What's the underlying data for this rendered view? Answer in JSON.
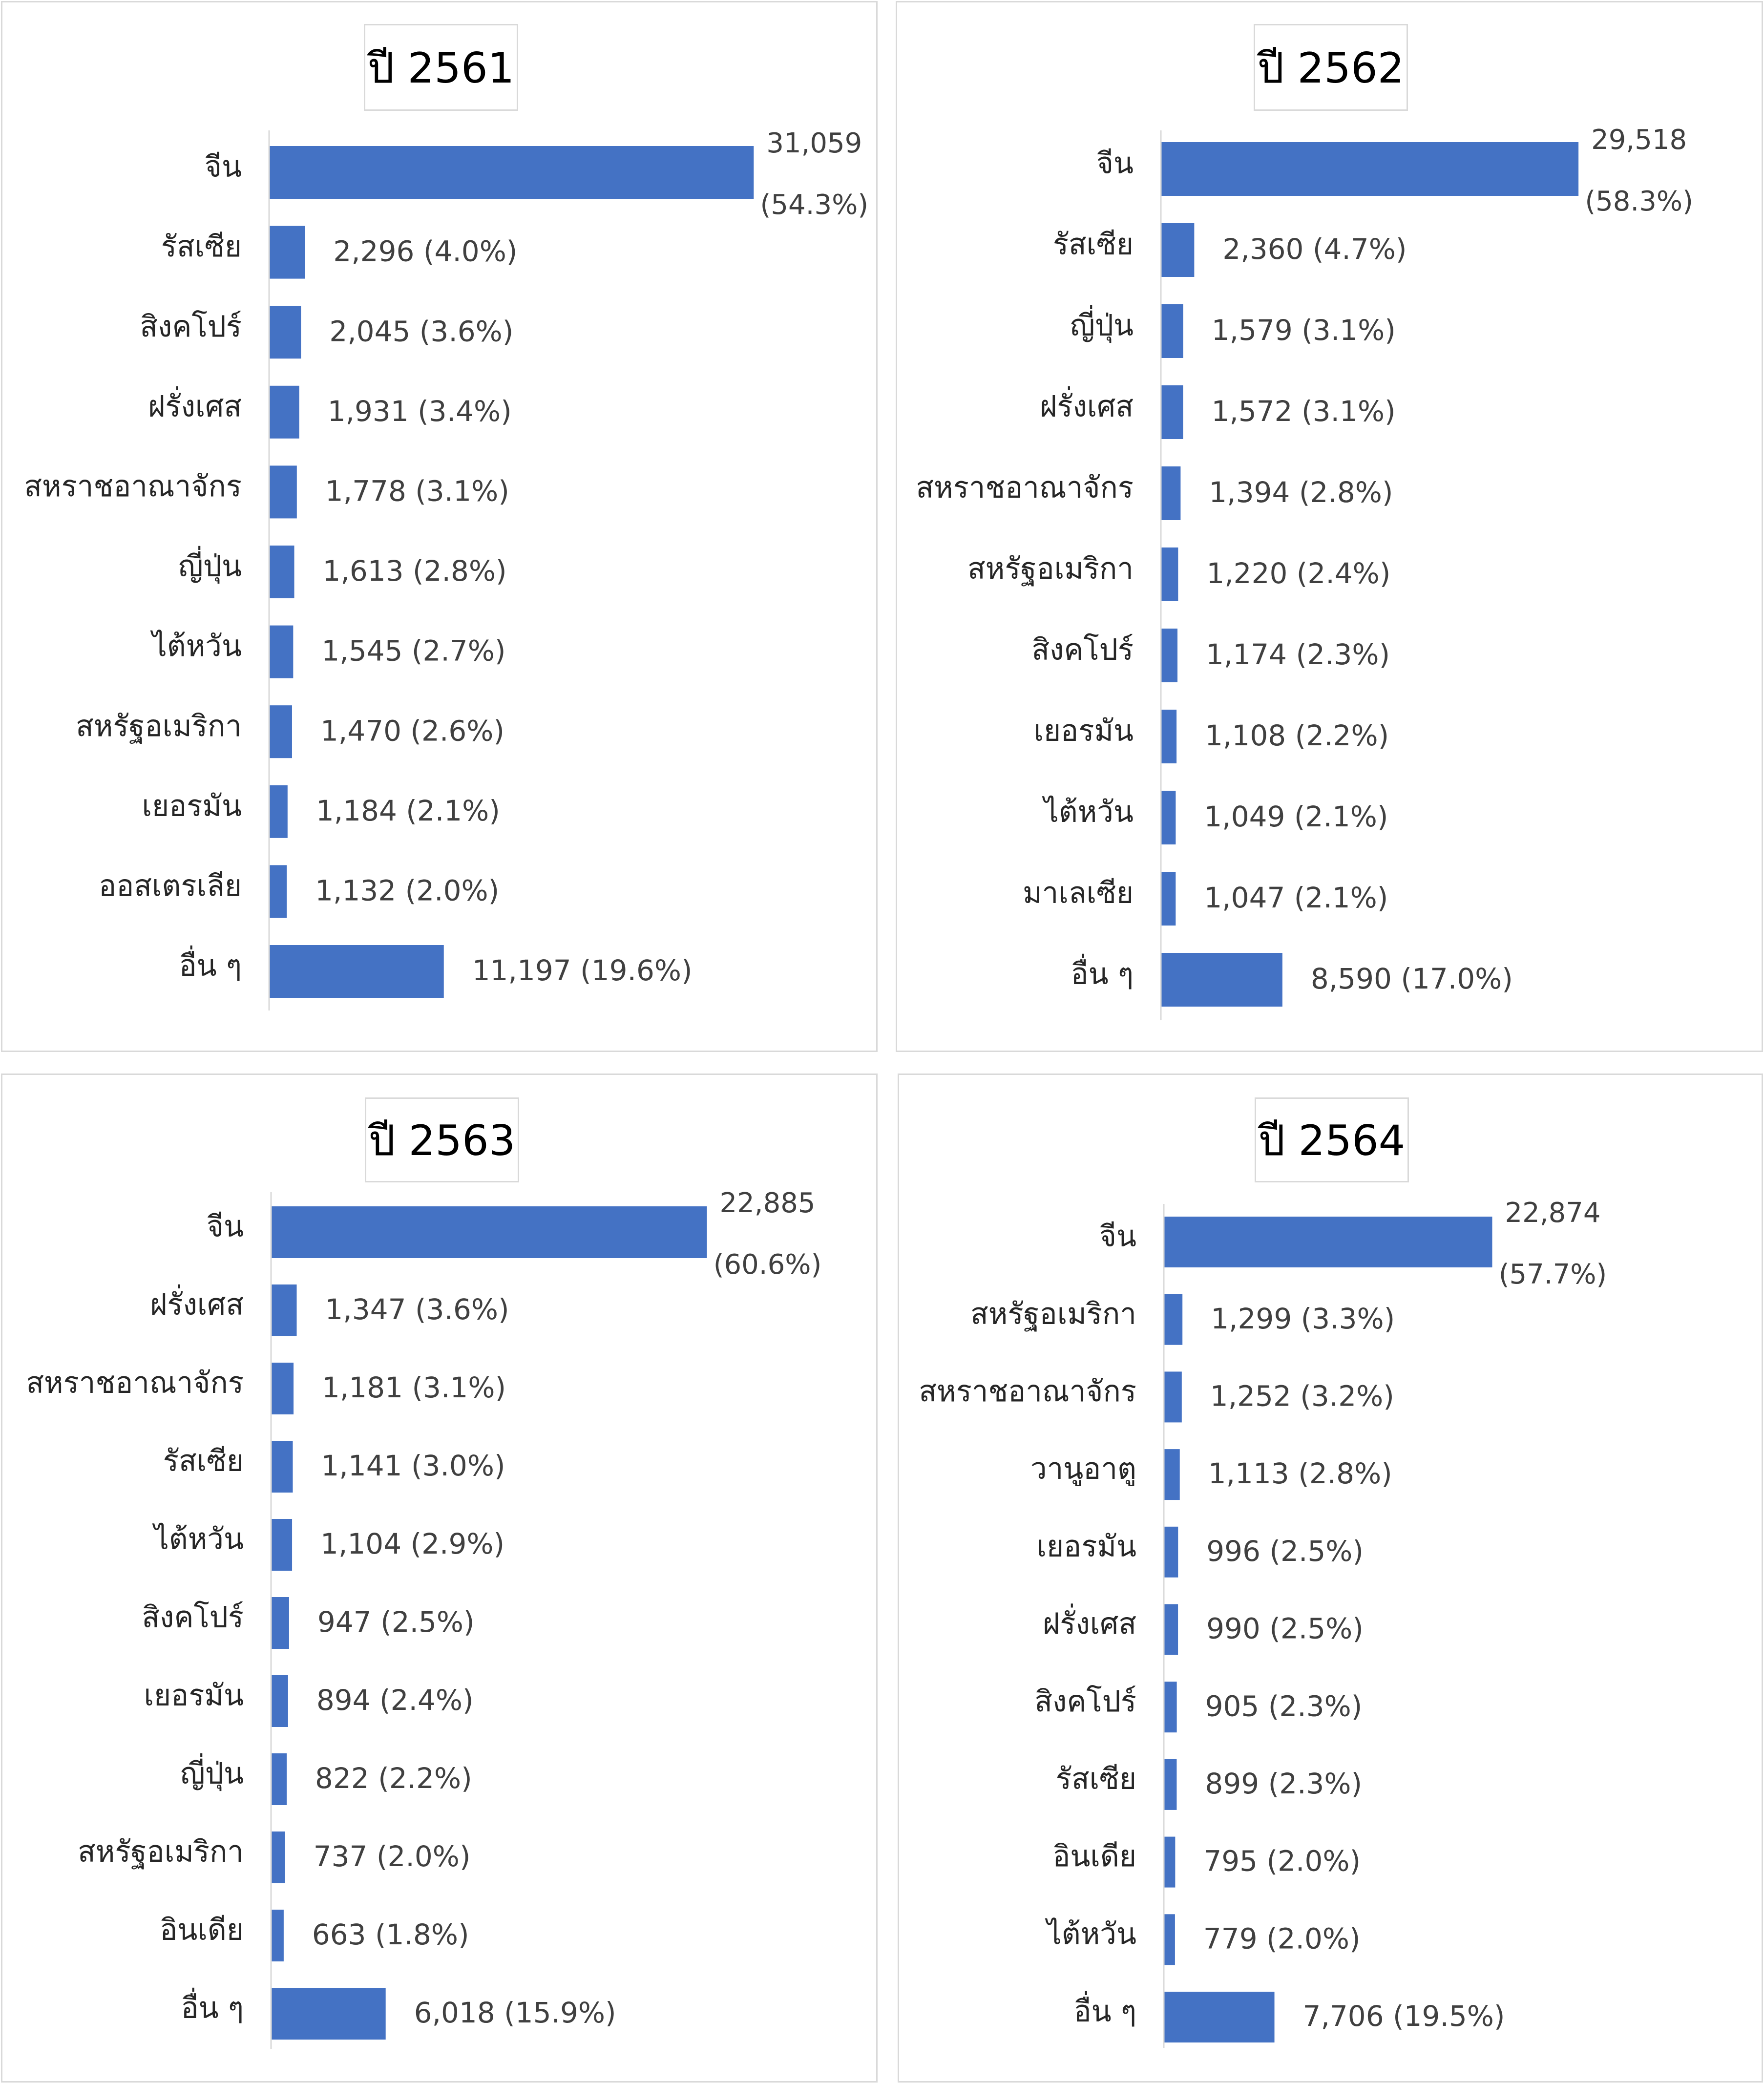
{
  "chart_data": [
    {
      "type": "bar",
      "orientation": "horizontal",
      "title": "ปี 2561",
      "categories": [
        "จีน",
        "รัสเซีย",
        "สิงคโปร์",
        "ฝรั่งเศส",
        "สหราชอาณาจักร",
        "ญี่ปุ่น",
        "ไต้หวัน",
        "สหรัฐอเมริกา",
        "เยอรมัน",
        "ออสเตรเลีย",
        "อื่น ๆ"
      ],
      "values": [
        31059,
        2296,
        2045,
        1931,
        1778,
        1613,
        1545,
        1470,
        1184,
        1132,
        11197
      ],
      "data_labels": [
        "31,059",
        "2,296 (4.0%)",
        "2,045 (3.6%)",
        "1,931 (3.4%)",
        "1,778 (3.1%)",
        "1,613 (2.8%)",
        "1,545 (2.7%)",
        "1,470 (2.6%)",
        "1,184 (2.1%)",
        "1,132 (2.0%)",
        "11,197 (19.6%)"
      ],
      "first_label_pct": "(54.3%)",
      "bar_color": "#4472c4"
    },
    {
      "type": "bar",
      "orientation": "horizontal",
      "title": "ปี 2562",
      "categories": [
        "จีน",
        "รัสเซีย",
        "ญี่ปุ่น",
        "ฝรั่งเศส",
        "สหราชอาณาจักร",
        "สหรัฐอเมริกา",
        "สิงคโปร์",
        "เยอรมัน",
        "ไต้หวัน",
        "มาเลเซีย",
        "อื่น ๆ"
      ],
      "values": [
        29518,
        2360,
        1579,
        1572,
        1394,
        1220,
        1174,
        1108,
        1049,
        1047,
        8590
      ],
      "data_labels": [
        "29,518",
        "2,360 (4.7%)",
        "1,579 (3.1%)",
        "1,572 (3.1%)",
        "1,394 (2.8%)",
        "1,220 (2.4%)",
        "1,174 (2.3%)",
        "1,108 (2.2%)",
        "1,049 (2.1%)",
        "1,047 (2.1%)",
        "8,590 (17.0%)"
      ],
      "first_label_pct": "(58.3%)",
      "bar_color": "#4472c4"
    },
    {
      "type": "bar",
      "orientation": "horizontal",
      "title": "ปี 2563",
      "categories": [
        "จีน",
        "ฝรั่งเศส",
        "สหราชอาณาจักร",
        "รัสเซีย",
        "ไต้หวัน",
        "สิงคโปร์",
        "เยอรมัน",
        "ญี่ปุ่น",
        "สหรัฐอเมริกา",
        "อินเดีย",
        "อื่น ๆ"
      ],
      "values": [
        22885,
        1347,
        1181,
        1141,
        1104,
        947,
        894,
        822,
        737,
        663,
        6018
      ],
      "data_labels": [
        "22,885",
        "1,347 (3.6%)",
        "1,181 (3.1%)",
        "1,141 (3.0%)",
        "1,104 (2.9%)",
        "947 (2.5%)",
        "894 (2.4%)",
        "822 (2.2%)",
        "737 (2.0%)",
        "663 (1.8%)",
        "6,018 (15.9%)"
      ],
      "first_label_pct": "(60.6%)",
      "bar_color": "#4472c4"
    },
    {
      "type": "bar",
      "orientation": "horizontal",
      "title": "ปี 2564",
      "categories": [
        "จีน",
        "สหรัฐอเมริกา",
        "สหราชอาณาจักร",
        "วานูอาตู",
        "เยอรมัน",
        "ฝรั่งเศส",
        "สิงคโปร์",
        "รัสเซีย",
        "อินเดีย",
        "ไต้หวัน",
        "อื่น ๆ"
      ],
      "values": [
        22874,
        1299,
        1252,
        1113,
        996,
        990,
        905,
        899,
        795,
        779,
        7706
      ],
      "data_labels": [
        "22,874",
        "1,299 (3.3%)",
        "1,252 (3.2%)",
        "1,113 (2.8%)",
        "996 (2.5%)",
        "990 (2.5%)",
        "905 (2.3%)",
        "899 (2.3%)",
        "795 (2.0%)",
        "779 (2.0%)",
        "7,706 (19.5%)"
      ],
      "first_label_pct": "(57.7%)",
      "bar_color": "#4472c4"
    }
  ]
}
